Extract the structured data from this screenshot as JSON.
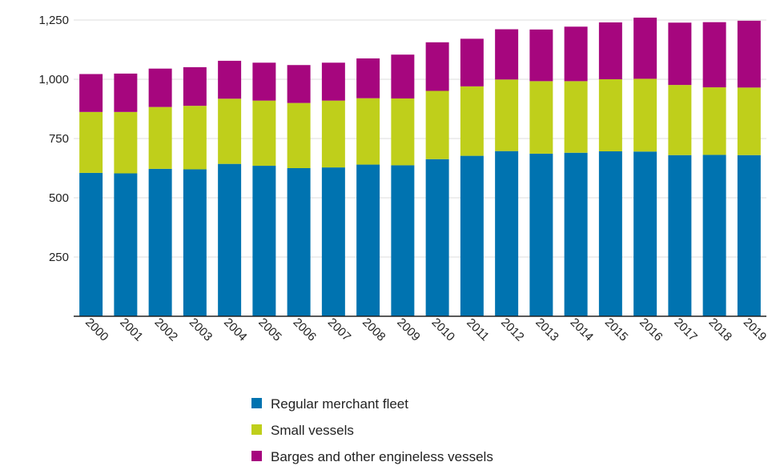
{
  "chart_data": {
    "type": "bar",
    "stacked": true,
    "title": "",
    "xlabel": "",
    "ylabel": "",
    "categories": [
      "2000",
      "2001",
      "2002",
      "2003",
      "2004",
      "2005",
      "2006",
      "2007",
      "2008",
      "2009",
      "2010",
      "2011",
      "2012",
      "2013",
      "2014",
      "2015",
      "2016",
      "2017",
      "2018",
      "2019"
    ],
    "series": [
      {
        "name": "Regular merchant fleet",
        "color": "#0073b0",
        "values": [
          605,
          603,
          622,
          620,
          643,
          635,
          625,
          628,
          640,
          637,
          663,
          677,
          697,
          686,
          690,
          696,
          695,
          680,
          681,
          680
        ]
      },
      {
        "name": "Small vessels",
        "color": "#bfcf1b",
        "values": [
          257,
          259,
          261,
          268,
          275,
          275,
          275,
          282,
          280,
          282,
          288,
          293,
          302,
          306,
          302,
          304,
          307,
          296,
          285,
          285
        ]
      },
      {
        "name": "Barges and other engineless vessels",
        "color": "#a6067e",
        "values": [
          160,
          162,
          162,
          163,
          160,
          160,
          160,
          160,
          168,
          185,
          205,
          201,
          212,
          218,
          230,
          240,
          258,
          263,
          275,
          282
        ]
      }
    ],
    "ylim": [
      0,
      1250
    ],
    "yticks": [
      {
        "value": 250,
        "label": "250"
      },
      {
        "value": 500,
        "label": "500"
      },
      {
        "value": 750,
        "label": "750"
      },
      {
        "value": 1000,
        "label": "1,000"
      },
      {
        "value": 1250,
        "label": "1,250"
      }
    ],
    "grid": true,
    "legend_position": "bottom"
  }
}
